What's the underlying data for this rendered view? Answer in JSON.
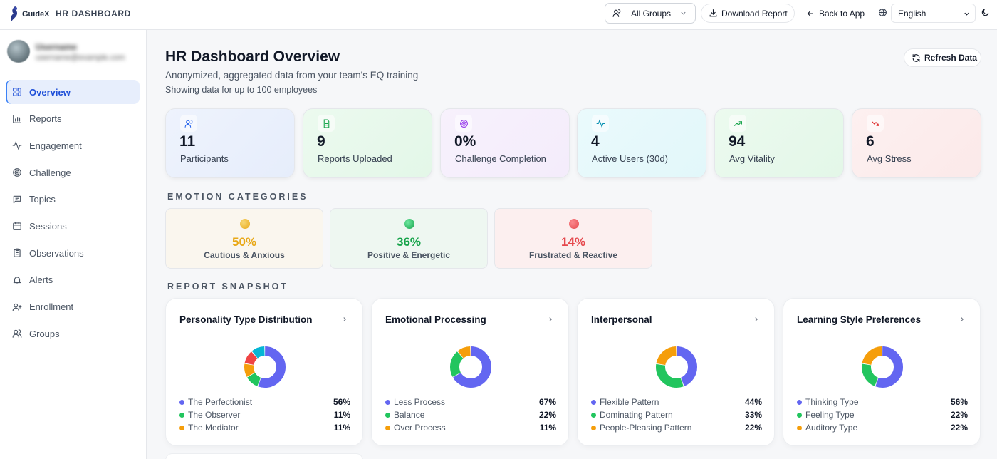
{
  "header": {
    "logo_text": "GuideX",
    "app_title": "HR DASHBOARD",
    "group_select": "All Groups",
    "download_label": "Download Report",
    "back_label": "Back to App",
    "language": "English"
  },
  "sidebar": {
    "user_name": "Username",
    "user_email": "username@example.com",
    "items": [
      {
        "label": "Overview",
        "icon": "grid-icon"
      },
      {
        "label": "Reports",
        "icon": "bar-chart-icon"
      },
      {
        "label": "Engagement",
        "icon": "activity-icon"
      },
      {
        "label": "Challenge",
        "icon": "target-icon"
      },
      {
        "label": "Topics",
        "icon": "message-icon"
      },
      {
        "label": "Sessions",
        "icon": "calendar-icon"
      },
      {
        "label": "Observations",
        "icon": "clipboard-icon"
      },
      {
        "label": "Alerts",
        "icon": "bell-icon"
      },
      {
        "label": "Enrollment",
        "icon": "user-plus-icon"
      },
      {
        "label": "Groups",
        "icon": "users-icon"
      }
    ]
  },
  "main": {
    "title": "HR Dashboard Overview",
    "subtitle": "Anonymized, aggregated data from your team's EQ training",
    "subtitle2": "Showing data for up to 100 employees",
    "refresh_label": "Refresh Data",
    "kpis": [
      {
        "value": "11",
        "label": "Participants",
        "icon": "users-icon",
        "color": "#2563eb"
      },
      {
        "value": "9",
        "label": "Reports Uploaded",
        "icon": "file-icon",
        "color": "#16a34a"
      },
      {
        "value": "0%",
        "label": "Challenge Completion",
        "icon": "target-icon",
        "color": "#9333ea"
      },
      {
        "value": "4",
        "label": "Active Users (30d)",
        "icon": "activity-icon",
        "color": "#0891b2"
      },
      {
        "value": "94",
        "label": "Avg Vitality",
        "icon": "trending-up-icon",
        "color": "#16a34a"
      },
      {
        "value": "6",
        "label": "Avg Stress",
        "icon": "trending-down-icon",
        "color": "#dc2626"
      }
    ],
    "emotion_section": "EMOTION CATEGORIES",
    "emotions": [
      {
        "percent": "50%",
        "name": "Cautious & Anxious",
        "color": "#e8a817"
      },
      {
        "percent": "36%",
        "name": "Positive & Energetic",
        "color": "#16a34a"
      },
      {
        "percent": "14%",
        "name": "Frustrated & Reactive",
        "color": "#e5484d"
      }
    ],
    "report_section": "REPORT SNAPSHOT",
    "cards": [
      {
        "title": "Personality Type Distribution",
        "slices": [
          {
            "label": "The Perfectionist",
            "pct": 56,
            "display": "56%",
            "color": "#6366f1"
          },
          {
            "label": "The Observer",
            "pct": 11,
            "display": "11%",
            "color": "#22c55e"
          },
          {
            "label": "The Mediator",
            "pct": 11,
            "display": "11%",
            "color": "#f59e0b"
          }
        ],
        "extra_slices": [
          {
            "pct": 11,
            "color": "#ef4444"
          },
          {
            "pct": 11,
            "color": "#06b6d4"
          }
        ]
      },
      {
        "title": "Emotional Processing",
        "slices": [
          {
            "label": "Less Process",
            "pct": 67,
            "display": "67%",
            "color": "#6366f1"
          },
          {
            "label": "Balance",
            "pct": 22,
            "display": "22%",
            "color": "#22c55e"
          },
          {
            "label": "Over Process",
            "pct": 11,
            "display": "11%",
            "color": "#f59e0b"
          }
        ],
        "extra_slices": []
      },
      {
        "title": "Interpersonal",
        "slices": [
          {
            "label": "Flexible Pattern",
            "pct": 44,
            "display": "44%",
            "color": "#6366f1"
          },
          {
            "label": "Dominating Pattern",
            "pct": 33,
            "display": "33%",
            "color": "#22c55e"
          },
          {
            "label": "People-Pleasing Pattern",
            "pct": 22,
            "display": "22%",
            "color": "#f59e0b"
          }
        ],
        "extra_slices": []
      },
      {
        "title": "Learning Style Preferences",
        "slices": [
          {
            "label": "Thinking Type",
            "pct": 56,
            "display": "56%",
            "color": "#6366f1"
          },
          {
            "label": "Feeling Type",
            "pct": 22,
            "display": "22%",
            "color": "#22c55e"
          },
          {
            "label": "Auditory Type",
            "pct": 22,
            "display": "22%",
            "color": "#f59e0b"
          }
        ],
        "extra_slices": []
      }
    ]
  }
}
